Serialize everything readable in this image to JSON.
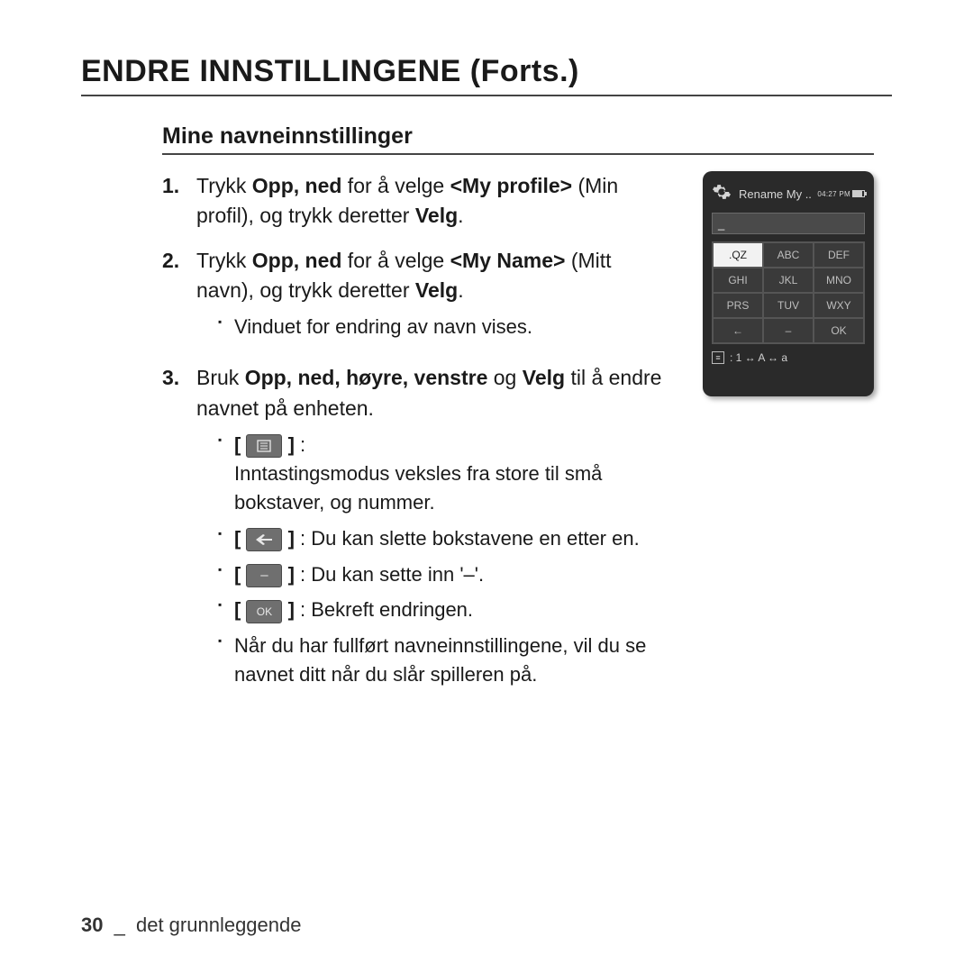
{
  "page_title": "ENDRE INNSTILLINGENE (Forts.)",
  "section_title": "Mine navneinnstillinger",
  "steps": [
    {
      "num": "1.",
      "parts": [
        "Trykk ",
        "Opp, ned",
        " for å velge ",
        "<My profile>",
        " (Min profil), og trykk deretter ",
        "Velg",
        "."
      ]
    },
    {
      "num": "2.",
      "parts": [
        "Trykk ",
        "Opp, ned",
        " for å velge ",
        "<My Name>",
        " (Mitt navn), og trykk deretter ",
        "Velg",
        "."
      ],
      "sub": [
        "Vinduet for endring av navn vises."
      ]
    },
    {
      "num": "3.",
      "parts": [
        "Bruk ",
        "Opp, ned, høyre, venstre",
        " og ",
        "Velg",
        " til å endre navnet på enheten."
      ],
      "key_items": [
        {
          "type": "mode",
          "text": "Inntastingsmodus veksles fra store til små bokstaver, og nummer."
        },
        {
          "type": "back",
          "text": "Du kan slette bokstavene en etter en."
        },
        {
          "type": "dash",
          "text": "Du kan sette inn '–'."
        },
        {
          "type": "ok",
          "label": "OK",
          "text": "Bekreft endringen."
        }
      ],
      "note": "Når du har fullført navneinnstillingene, vil du se navnet ditt når du slår spilleren på."
    }
  ],
  "device": {
    "clock": "04:27 PM",
    "title": "Rename My ..",
    "input_value": "_",
    "keys": [
      [
        ".QZ",
        "ABC",
        "DEF"
      ],
      [
        "GHI",
        "JKL",
        "MNO"
      ],
      [
        "PRS",
        "TUV",
        "WXY"
      ],
      [
        "←",
        "–",
        "OK"
      ]
    ],
    "selected_row": 0,
    "selected_col": 0,
    "footer": ": 1 ↔ A ↔ a"
  },
  "footer": {
    "page_num": "30",
    "sep": "_",
    "section": "det grunnleggende"
  },
  "colors": {
    "key_bg": "#6f6f6f",
    "key_fg": "#e8e8e8",
    "device_bg": "#2a2a2a"
  }
}
